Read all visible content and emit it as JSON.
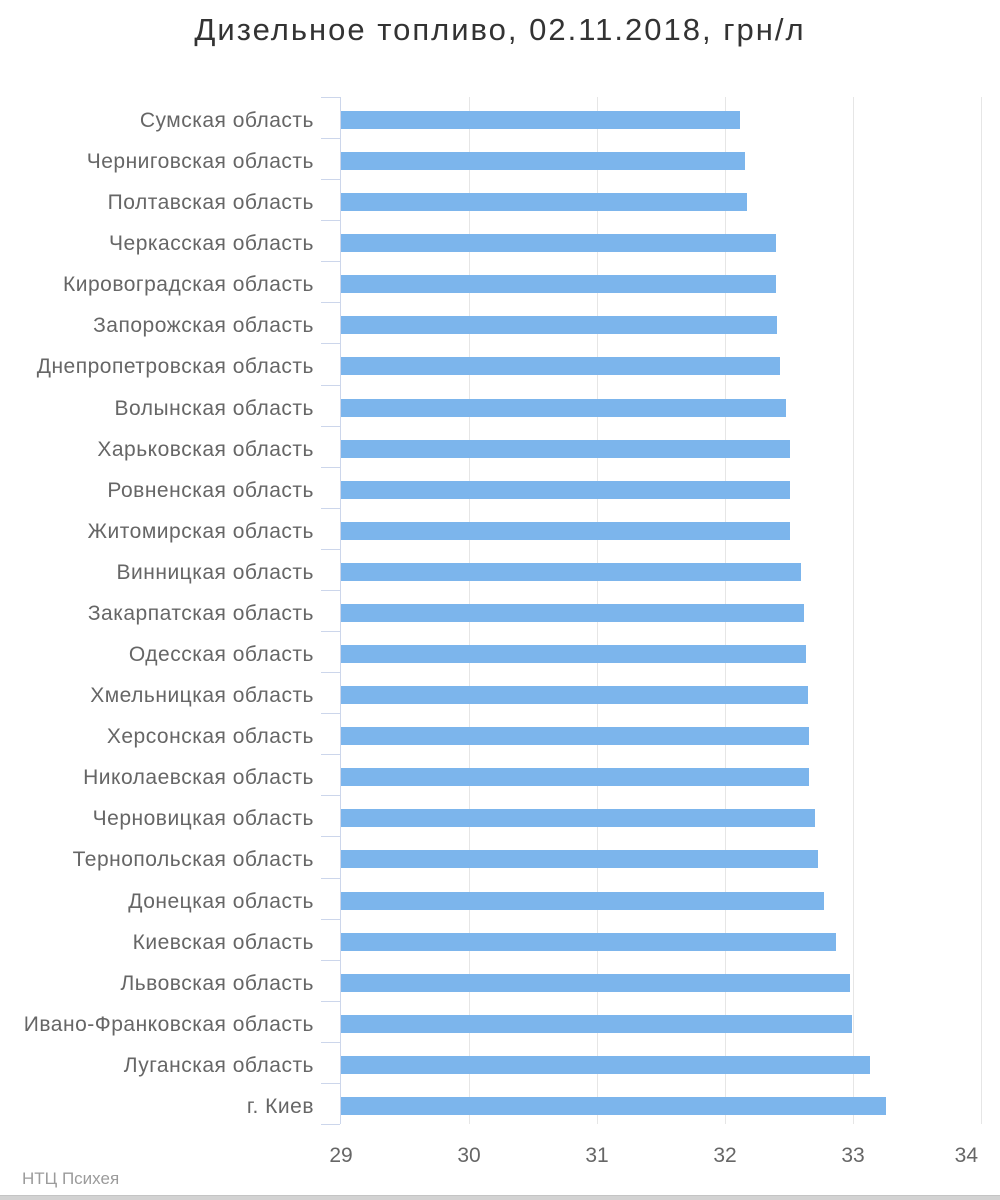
{
  "title": "Дизельное топливо, 02.11.2018, грн/л",
  "credits": {
    "label": "НТЦ Психея"
  },
  "colors": {
    "bar": "#7cb5ec",
    "grid": "#e6e6e6",
    "axis_line": "#ccd6eb",
    "title_text": "#333333",
    "label_text": "#666666",
    "credits_text": "#9b9b9b"
  },
  "chart_data": {
    "type": "bar",
    "title": "Дизельное топливо, 02.11.2018, грн/л",
    "xlabel": "",
    "ylabel": "",
    "xlim": [
      29,
      34
    ],
    "xticks": [
      29,
      30,
      31,
      32,
      33,
      34
    ],
    "grid": true,
    "legend": "none",
    "categories": [
      "Сумская область",
      "Черниговская область",
      "Полтавская область",
      "Черкасская область",
      "Кировоградская область",
      "Запорожская область",
      "Днепропетровская область",
      "Волынская область",
      "Харьковская область",
      "Ровненская область",
      "Житомирская область",
      "Винницкая область",
      "Закарпатская область",
      "Одесская область",
      "Хмельницкая область",
      "Херсонская область",
      "Николаевская область",
      "Черновицкая область",
      "Тернопольская область",
      "Донецкая область",
      "Киевская область",
      "Львовская область",
      "Ивано-Франковская область",
      "Луганская область",
      "г. Киев"
    ],
    "values": [
      32.12,
      32.16,
      32.17,
      32.4,
      32.4,
      32.41,
      32.43,
      32.48,
      32.51,
      32.51,
      32.51,
      32.59,
      32.62,
      32.63,
      32.65,
      32.66,
      32.66,
      32.7,
      32.73,
      32.77,
      32.87,
      32.98,
      32.99,
      33.13,
      33.26
    ]
  }
}
